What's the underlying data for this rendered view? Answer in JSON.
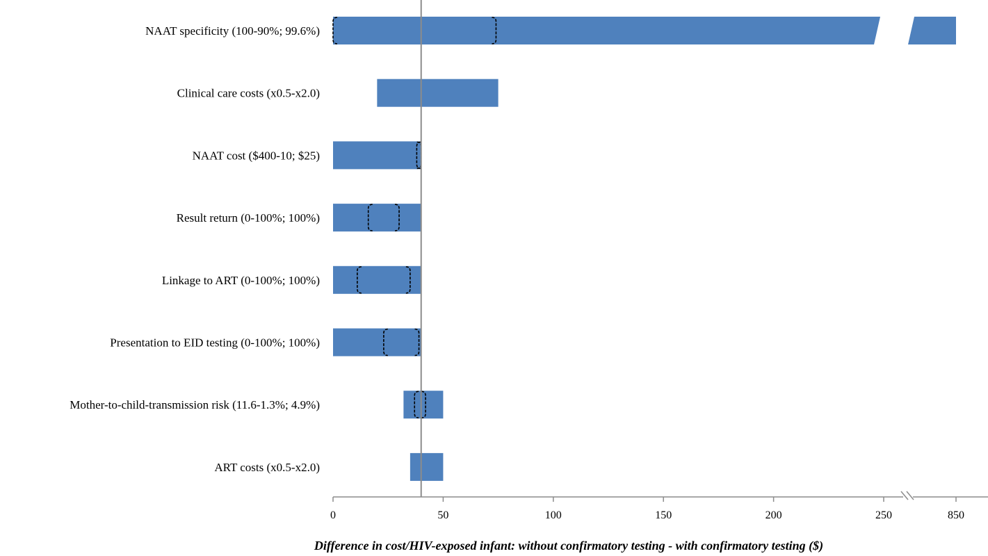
{
  "chart_data": {
    "type": "bar",
    "subtype": "tornado",
    "title": "",
    "xlabel": "Difference in cost/HIV-exposed infant: without confirmatory testing - with confirmatory testing ($)",
    "ylabel": "",
    "base_value": 40,
    "xlim": [
      0,
      250
    ],
    "broken_axis": {
      "after": 250,
      "extra_tick": 850
    },
    "xticks": [
      "0",
      "50",
      "100",
      "150",
      "200",
      "250",
      "850"
    ],
    "bar_color": "#4f81bd",
    "bars": [
      {
        "label": "NAAT specificity (100-90%; 99.6%)",
        "low": 0,
        "high": 850,
        "extends_past_break": true,
        "bracket": [
          0,
          74
        ]
      },
      {
        "label": "Clinical care costs (x0.5-x2.0)",
        "low": 20,
        "high": 75
      },
      {
        "label": "NAAT cost ($400-10; $25)",
        "low": 0,
        "high": 40,
        "bracket": [
          38,
          40
        ]
      },
      {
        "label": "Result return (0-100%; 100%)",
        "low": 0,
        "high": 40,
        "bracket": [
          16,
          30
        ]
      },
      {
        "label": "Linkage to ART (0-100%; 100%)",
        "low": 0,
        "high": 40,
        "bracket": [
          11,
          35
        ]
      },
      {
        "label": "Presentation to EID testing (0-100%; 100%)",
        "low": 0,
        "high": 40,
        "bracket": [
          23,
          39
        ]
      },
      {
        "label": "Mother-to-child-transmission risk (11.6-1.3%; 4.9%)",
        "low": 32,
        "high": 50,
        "bracket": [
          37,
          42
        ]
      },
      {
        "label": "ART costs (x0.5-x2.0)",
        "low": 35,
        "high": 50
      }
    ]
  }
}
